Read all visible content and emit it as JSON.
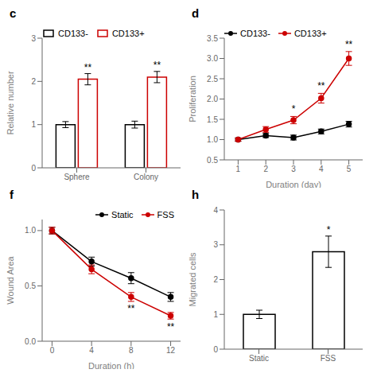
{
  "chart_data": [
    {
      "type": "bar",
      "title": "c",
      "categories": [
        "Sphere",
        "Colony"
      ],
      "series": [
        {
          "name": "CD133-",
          "color": "#000000",
          "values": [
            1.0,
            1.0
          ],
          "errors": [
            0.07,
            0.08
          ]
        },
        {
          "name": "CD133+",
          "color": "#cc0000",
          "values": [
            2.05,
            2.1
          ],
          "errors": [
            0.13,
            0.13
          ]
        }
      ],
      "y_label": "Relative number",
      "ylim": [
        0,
        3
      ],
      "yticks": [
        0,
        1,
        2,
        3
      ],
      "legend": "upper left",
      "annotations": [
        {
          "text": "**",
          "category": "Sphere",
          "series": "CD133+"
        },
        {
          "text": "**",
          "category": "Colony",
          "series": "CD133+"
        }
      ]
    },
    {
      "type": "line",
      "title": "d",
      "x": [
        1,
        2,
        3,
        4,
        5
      ],
      "series": [
        {
          "name": "CD133-",
          "color": "#000000",
          "values": [
            1.0,
            1.1,
            1.05,
            1.2,
            1.38
          ],
          "errors": [
            0.04,
            0.05,
            0.06,
            0.06,
            0.07
          ]
        },
        {
          "name": "CD133+",
          "color": "#cc0000",
          "values": [
            1.0,
            1.25,
            1.48,
            2.02,
            3.0
          ],
          "errors": [
            0.04,
            0.07,
            0.09,
            0.12,
            0.17
          ]
        }
      ],
      "x_label": "Duration (day)",
      "y_label": "Proliferation",
      "xlim": [
        0.5,
        5.5
      ],
      "xticks": [
        1,
        2,
        3,
        4,
        5
      ],
      "ylim": [
        0.5,
        3.5
      ],
      "yticks": [
        0.5,
        {
          "value": 1.0,
          "label": "1.0"
        },
        1.5,
        {
          "value": 2.0,
          "label": "2.0"
        },
        2.5,
        {
          "value": 3.0,
          "label": "3.0"
        },
        3.5
      ],
      "marker": "circle",
      "legend": "upper left",
      "annotations": [
        {
          "text": "*",
          "x": 3,
          "series": "CD133+",
          "position": "above"
        },
        {
          "text": "**",
          "x": 4,
          "series": "CD133+",
          "position": "above"
        },
        {
          "text": "**",
          "x": 5,
          "series": "CD133+",
          "position": "above"
        }
      ]
    },
    {
      "type": "line",
      "title": "f",
      "x": [
        0,
        4,
        8,
        12
      ],
      "series": [
        {
          "name": "Static",
          "color": "#000000",
          "values": [
            1.0,
            0.72,
            0.57,
            0.4
          ],
          "errors": [
            0.03,
            0.04,
            0.05,
            0.04
          ]
        },
        {
          "name": "FSS",
          "color": "#cc0000",
          "values": [
            1.0,
            0.65,
            0.4,
            0.23
          ],
          "errors": [
            0.03,
            0.04,
            0.04,
            0.03
          ]
        }
      ],
      "x_label": "Duration (h)",
      "y_label": "Wound Area",
      "xlim": [
        -1,
        13
      ],
      "xticks": [
        0,
        4,
        8,
        12
      ],
      "ylim": [
        0.0,
        1.1
      ],
      "yticks": [
        {
          "value": 0.0,
          "label": "0.0"
        },
        0.5,
        {
          "value": 1.0,
          "label": "1.0"
        }
      ],
      "marker": "circle",
      "legend": "upper right",
      "annotations": [
        {
          "text": "**",
          "x": 8,
          "series": "FSS",
          "position": "below"
        },
        {
          "text": "**",
          "x": 12,
          "series": "FSS",
          "position": "below"
        }
      ]
    },
    {
      "type": "bar",
      "title": "h",
      "categories": [
        "Static",
        "FSS"
      ],
      "values": [
        1.0,
        2.8
      ],
      "errors": [
        0.12,
        0.45
      ],
      "color": "#000000",
      "y_label": "Migrated cells",
      "ylim": [
        0,
        4
      ],
      "yticks": [
        0,
        1,
        2,
        3,
        4
      ],
      "annotations": [
        {
          "text": "*",
          "category": "FSS"
        }
      ]
    }
  ]
}
